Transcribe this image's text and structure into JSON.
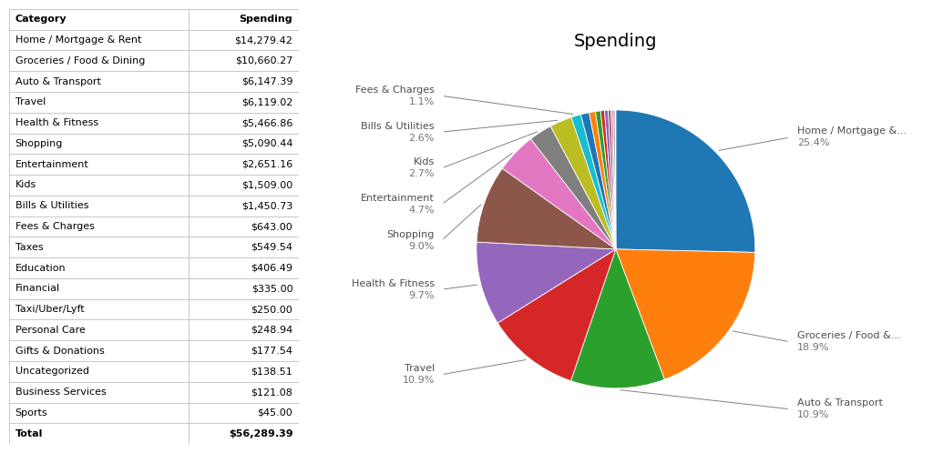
{
  "chart_data": {
    "type": "pie",
    "title": "Spending",
    "categories": [
      "Home / Mortgage & Rent",
      "Groceries / Food & Dining",
      "Auto & Transport",
      "Travel",
      "Health & Fitness",
      "Shopping",
      "Entertainment",
      "Kids",
      "Bills & Utilities",
      "Fees & Charges",
      "Taxes",
      "Education",
      "Financial",
      "Taxi/Uber/Lyft",
      "Personal Care",
      "Gifts & Donations",
      "Uncategorized",
      "Business Services",
      "Sports"
    ],
    "values": [
      14279.42,
      10660.27,
      6147.39,
      6119.02,
      5466.86,
      5090.44,
      2651.16,
      1509.0,
      1450.73,
      643.0,
      549.54,
      406.49,
      335.0,
      250.0,
      248.94,
      177.54,
      138.51,
      121.08,
      45.0
    ],
    "value_labels": [
      "$14,279.42",
      "$10,660.27",
      "$6,147.39",
      "$6,119.02",
      "$5,466.86",
      "$5,090.44",
      "$2,651.16",
      "$1,509.00",
      "$1,450.73",
      "$643.00",
      "$549.54",
      "$406.49",
      "$335.00",
      "$250.00",
      "$248.94",
      "$177.54",
      "$138.51",
      "$121.08",
      "$45.00"
    ],
    "table": {
      "columns": [
        "Category",
        "Spending"
      ],
      "total": {
        "label": "Total",
        "value": 56289.39,
        "value_label": "$56,289.39"
      }
    },
    "annotations": [
      {
        "category": "Home / Mortgage & Rent",
        "text": "Home / Mortgage &...",
        "value": 25.4,
        "label": "25.4%"
      },
      {
        "category": "Groceries / Food & Dining",
        "text": "Groceries / Food &...",
        "value": 18.9,
        "label": "18.9%"
      },
      {
        "category": "Auto & Transport",
        "text": "Auto & Transport",
        "value": 10.9,
        "label": "10.9%"
      },
      {
        "category": "Travel",
        "text": "Travel",
        "value": 10.9,
        "label": "10.9%"
      },
      {
        "category": "Health & Fitness",
        "text": "Health & Fitness",
        "value": 9.7,
        "label": "9.7%"
      },
      {
        "category": "Shopping",
        "text": "Shopping",
        "value": 9.0,
        "label": "9.0%"
      },
      {
        "category": "Entertainment",
        "text": "Entertainment",
        "value": 4.7,
        "label": "4.7%"
      },
      {
        "category": "Kids",
        "text": "Kids",
        "value": 2.7,
        "label": "2.7%"
      },
      {
        "category": "Bills & Utilities",
        "text": "Bills & Utilities",
        "value": 2.6,
        "label": "2.6%"
      },
      {
        "category": "Fees & Charges",
        "text": "Fees & Charges",
        "value": 1.1,
        "label": "1.1%"
      }
    ]
  }
}
